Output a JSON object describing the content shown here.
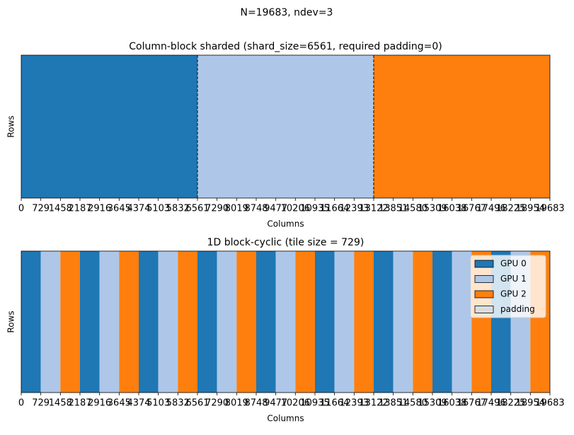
{
  "suptitle": "N=19683, ndev=3",
  "chart_data": [
    {
      "type": "blocks",
      "title": "Column-block sharded (shard_size=6561, required padding=0)",
      "xlabel": "Columns",
      "ylabel": "Rows",
      "xlim": [
        0,
        19683
      ],
      "xticks": [
        0,
        729,
        1458,
        2187,
        2916,
        3645,
        4374,
        5103,
        5832,
        6561,
        7290,
        8019,
        8748,
        9477,
        10206,
        10935,
        11664,
        12393,
        13122,
        13851,
        14580,
        15309,
        16038,
        16767,
        17496,
        18225,
        18954,
        19683
      ],
      "edges": [
        0,
        6561,
        13122,
        19683
      ],
      "colors": [
        "#1f77b4",
        "#aec7e8",
        "#ff7f0e"
      ],
      "dividers": [
        6561,
        13122
      ]
    },
    {
      "type": "blocks",
      "title": "1D block-cyclic (tile size = 729)",
      "xlabel": "Columns",
      "ylabel": "Rows",
      "xlim": [
        0,
        19683
      ],
      "xticks": [
        0,
        729,
        1458,
        2187,
        2916,
        3645,
        4374,
        5103,
        5832,
        6561,
        7290,
        8019,
        8748,
        9477,
        10206,
        10935,
        11664,
        12393,
        13122,
        13851,
        14580,
        15309,
        16038,
        16767,
        17496,
        18225,
        18954,
        19683
      ],
      "edges": [
        0,
        729,
        1458,
        2187,
        2916,
        3645,
        4374,
        5103,
        5832,
        6561,
        7290,
        8019,
        8748,
        9477,
        10206,
        10935,
        11664,
        12393,
        13122,
        13851,
        14580,
        15309,
        16038,
        16767,
        17496,
        18225,
        18954,
        19683
      ],
      "owner": [
        0,
        1,
        2,
        0,
        1,
        2,
        0,
        1,
        2,
        0,
        1,
        2,
        0,
        1,
        2,
        0,
        1,
        2,
        0,
        1,
        2,
        0,
        1,
        2,
        0,
        1,
        2
      ],
      "series": [
        {
          "name": "GPU 0",
          "color": "#1f77b4"
        },
        {
          "name": "GPU 1",
          "color": "#aec7e8"
        },
        {
          "name": "GPU 2",
          "color": "#ff7f0e"
        },
        {
          "name": "padding",
          "color": "#dcdcdc"
        }
      ],
      "legend": "upper right"
    }
  ]
}
